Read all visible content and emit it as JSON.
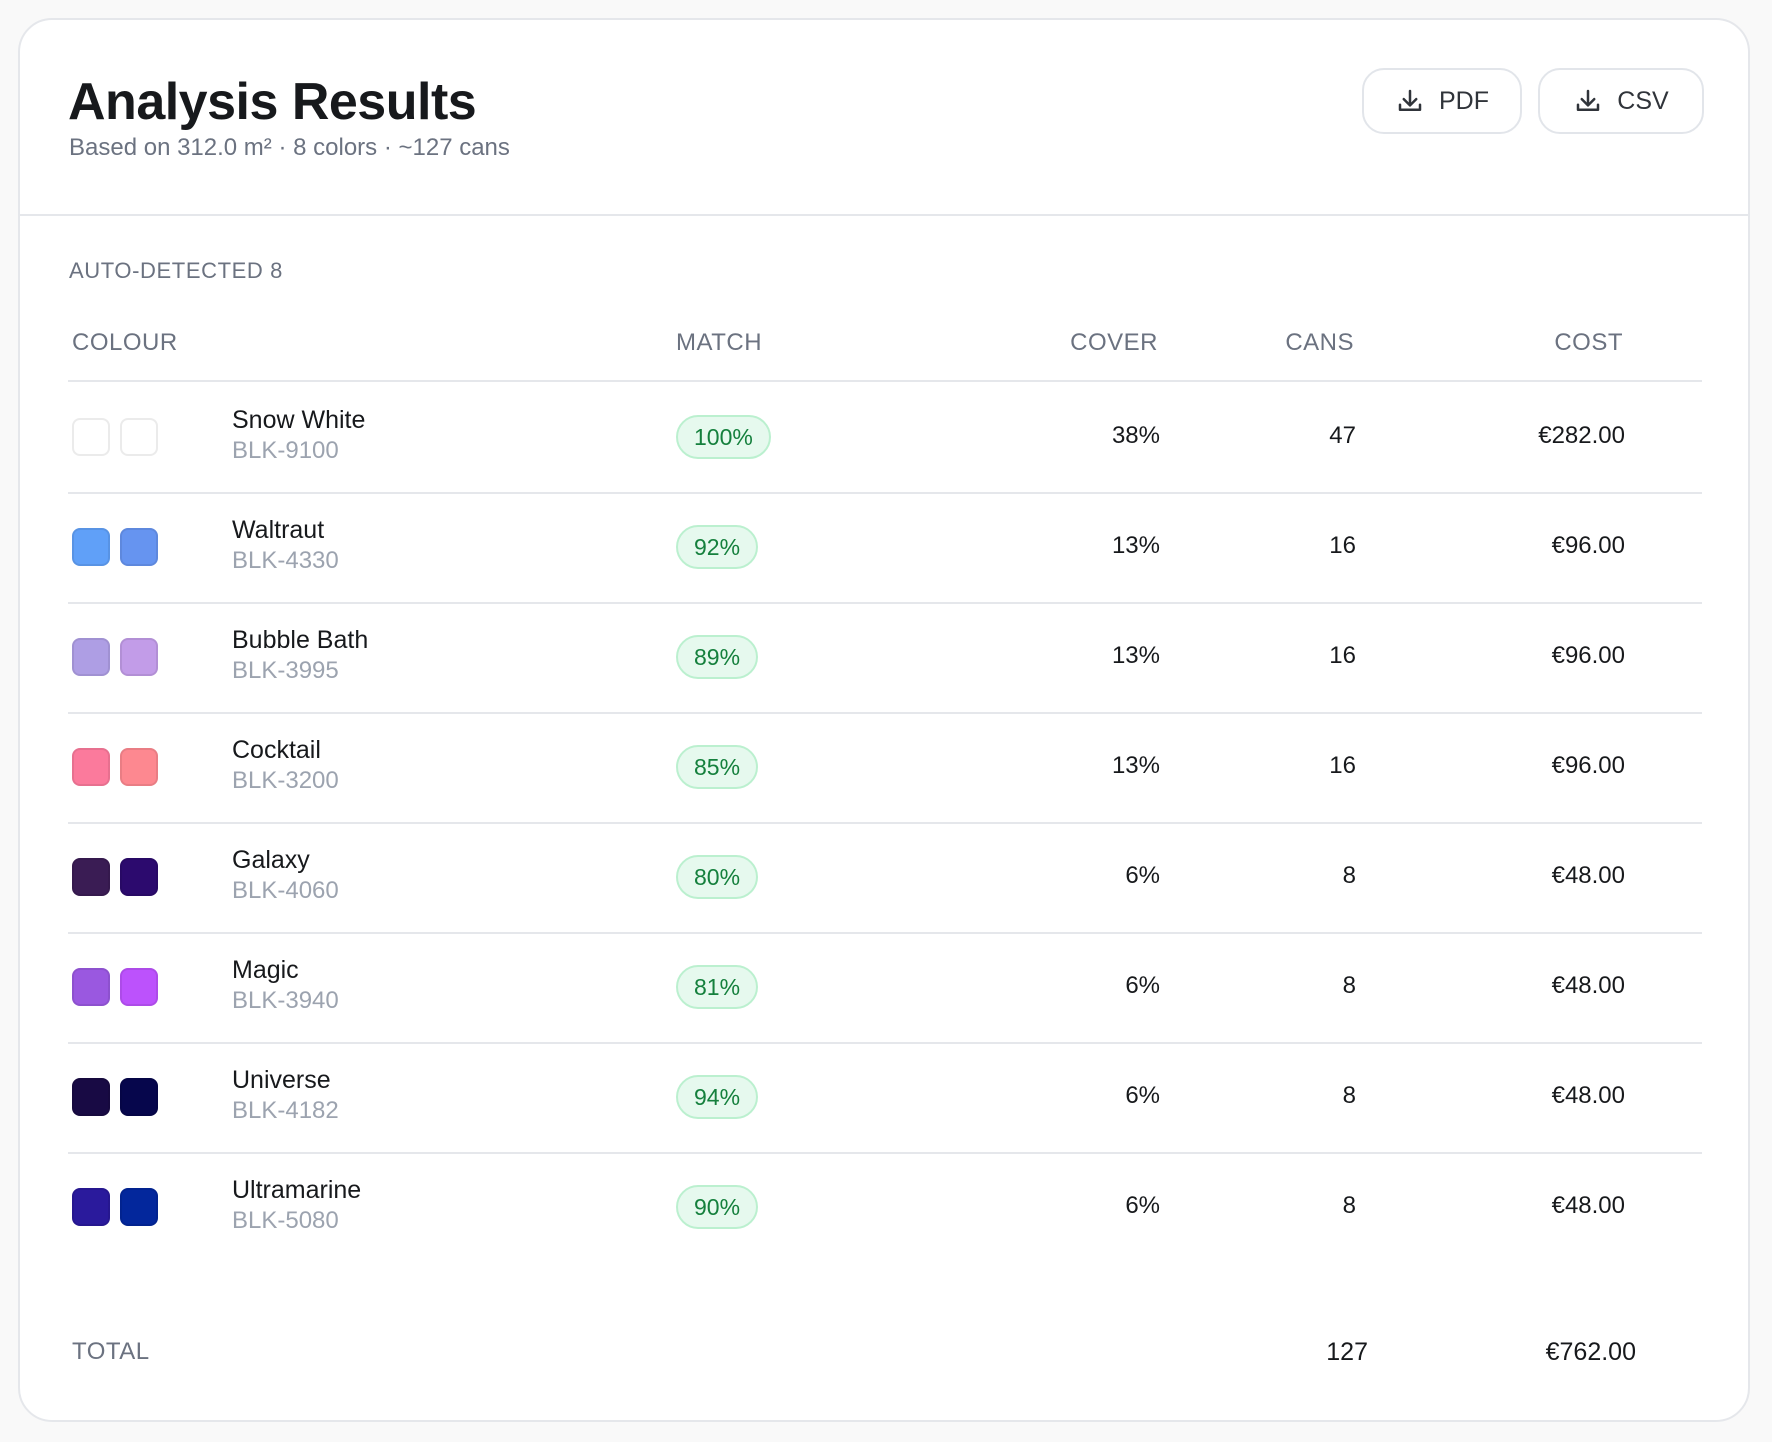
{
  "header": {
    "title": "Analysis Results",
    "subtitle": "Based on 312.0 m² · 8 colors · ~127 cans",
    "pdf_label": "PDF",
    "csv_label": "CSV"
  },
  "section": {
    "label": "AUTO-DETECTED 8"
  },
  "table": {
    "columns": {
      "colour": "COLOUR",
      "match": "MATCH",
      "cover": "COVER",
      "cans": "CANS",
      "cost": "COST"
    },
    "rows": [
      {
        "name": "Snow White",
        "code": "BLK-9100",
        "match": "100%",
        "cover": "38%",
        "cans": "47",
        "cost": "€282.00",
        "swatch_a": "#ffffff",
        "swatch_b": "#ffffff"
      },
      {
        "name": "Waltraut",
        "code": "BLK-4330",
        "match": "92%",
        "cover": "13%",
        "cans": "16",
        "cost": "€96.00",
        "swatch_a": "#60a0f8",
        "swatch_b": "#6694f0"
      },
      {
        "name": "Bubble Bath",
        "code": "BLK-3995",
        "match": "89%",
        "cover": "13%",
        "cans": "16",
        "cost": "€96.00",
        "swatch_a": "#ae9ee4",
        "swatch_b": "#c29ce8"
      },
      {
        "name": "Cocktail",
        "code": "BLK-3200",
        "match": "85%",
        "cover": "13%",
        "cans": "16",
        "cost": "€96.00",
        "swatch_a": "#fb7a9c",
        "swatch_b": "#fd8890"
      },
      {
        "name": "Galaxy",
        "code": "BLK-4060",
        "match": "80%",
        "cover": "6%",
        "cans": "8",
        "cost": "€48.00",
        "swatch_a": "#3a1c54",
        "swatch_b": "#2c0a6e"
      },
      {
        "name": "Magic",
        "code": "BLK-3940",
        "match": "81%",
        "cover": "6%",
        "cans": "8",
        "cost": "€48.00",
        "swatch_a": "#9a58e0",
        "swatch_b": "#bc52fc"
      },
      {
        "name": "Universe",
        "code": "BLK-4182",
        "match": "94%",
        "cover": "6%",
        "cans": "8",
        "cost": "€48.00",
        "swatch_a": "#180a44",
        "swatch_b": "#06064c"
      },
      {
        "name": "Ultramarine",
        "code": "BLK-5080",
        "match": "90%",
        "cover": "6%",
        "cans": "8",
        "cost": "€48.00",
        "swatch_a": "#2a1a9c",
        "swatch_b": "#03279c"
      }
    ],
    "total": {
      "label": "TOTAL",
      "cans": "127",
      "cost": "€762.00"
    }
  }
}
